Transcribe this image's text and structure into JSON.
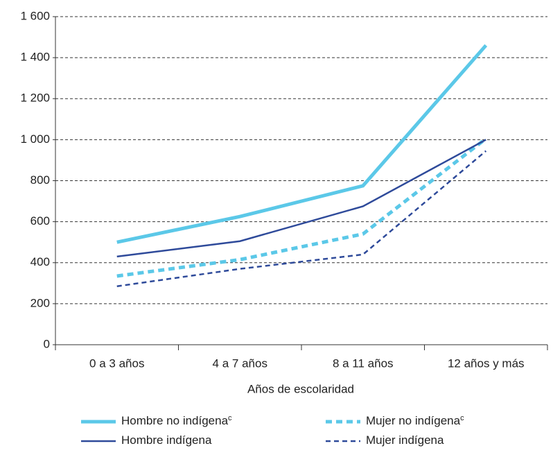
{
  "chart_data": {
    "type": "line",
    "x_label": "Años de escolaridad",
    "categories": [
      "0 a 3 años",
      "4 a 7 años",
      "8 a 11 años",
      "12 años y más"
    ],
    "ylim": [
      0,
      1600
    ],
    "yticks": [
      0,
      200,
      400,
      600,
      800,
      {
        "value": 1000,
        "label": "1 000"
      },
      {
        "value": 1200,
        "label": "1 200"
      },
      {
        "value": 1400,
        "label": "1 400"
      },
      {
        "value": 1600,
        "label": "1 600"
      }
    ],
    "grid": true,
    "series": [
      {
        "name": "Hombre no indígena",
        "note": "c",
        "color": "#5bc8e8",
        "width": 5,
        "dashed": false,
        "values": [
          500,
          625,
          775,
          1460
        ]
      },
      {
        "name": "Mujer no indígena",
        "note": "c",
        "color": "#5bc8e8",
        "width": 5,
        "dashed": true,
        "values": [
          335,
          415,
          540,
          1005
        ]
      },
      {
        "name": "Hombre indígena",
        "color": "#2e4a9a",
        "width": 2.5,
        "dashed": false,
        "values": [
          430,
          505,
          675,
          1000
        ]
      },
      {
        "name": "Mujer indígena",
        "color": "#2e4a9a",
        "width": 2.5,
        "dashed": true,
        "values": [
          285,
          370,
          440,
          945
        ]
      }
    ]
  }
}
